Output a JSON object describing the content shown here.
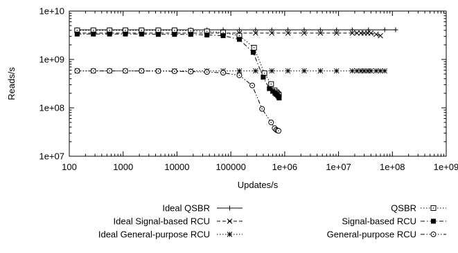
{
  "chart_data": {
    "type": "line",
    "title": "",
    "xlabel": "Updates/s",
    "ylabel": "Reads/s",
    "xscale": "log",
    "yscale": "log",
    "xlim": [
      100,
      1000000000
    ],
    "ylim": [
      10000000,
      10000000000
    ],
    "grid": false,
    "legend_position": "bottom (outside plot, two columns)",
    "x_tick_labels": [
      "100",
      "1000",
      "10000",
      "100000",
      "1e+06",
      "1e+07",
      "1e+08",
      "1e+09"
    ],
    "y_tick_labels": [
      "1e+07",
      "1e+08",
      "1e+09",
      "1e+10"
    ],
    "series": [
      {
        "name": "Ideal QSBR",
        "marker": "plus",
        "dash": "solid",
        "x": [
          140,
          280,
          560,
          1100,
          2200,
          4500,
          9000,
          18000,
          36000,
          72000,
          144000,
          288000,
          576000,
          1150000,
          2300000,
          4600000,
          9200000,
          18000000,
          36000000,
          72000000,
          115000000
        ],
        "y": [
          4100000000.0,
          4100000000.0,
          4100000000.0,
          4100000000.0,
          4100000000.0,
          4100000000.0,
          4100000000.0,
          4100000000.0,
          4100000000.0,
          4100000000.0,
          4100000000.0,
          4100000000.0,
          4100000000.0,
          4100000000.0,
          4100000000.0,
          4100000000.0,
          4100000000.0,
          4100000000.0,
          4100000000.0,
          4100000000.0,
          4100000000.0
        ]
      },
      {
        "name": "Ideal Signal-based RCU",
        "marker": "x",
        "dash": "dashed",
        "x": [
          140,
          280,
          560,
          1100,
          2200,
          4500,
          9000,
          18000,
          36000,
          72000,
          144000,
          288000,
          576000,
          1150000,
          2300000,
          4600000,
          9200000,
          18000000,
          22000000,
          26000000,
          30000000,
          35000000,
          40000000,
          50000000,
          60000000
        ],
        "y": [
          3500000000.0,
          3500000000.0,
          3500000000.0,
          3500000000.0,
          3500000000.0,
          3500000000.0,
          3500000000.0,
          3500000000.0,
          3500000000.0,
          3500000000.0,
          3500000000.0,
          3500000000.0,
          3500000000.0,
          3500000000.0,
          3500000000.0,
          3500000000.0,
          3500000000.0,
          3500000000.0,
          3500000000.0,
          3500000000.0,
          3500000000.0,
          3500000000.0,
          3500000000.0,
          3300000000.0,
          3100000000.0
        ]
      },
      {
        "name": "Ideal General-purpose RCU",
        "marker": "star",
        "dash": "dotted",
        "x": [
          140,
          280,
          560,
          1100,
          2200,
          4500,
          9000,
          18000,
          36000,
          72000,
          144000,
          288000,
          576000,
          1150000,
          2300000,
          4600000,
          9200000,
          18000000,
          22000000,
          26000000,
          30000000,
          35000000,
          40000000,
          50000000,
          60000000,
          72000000
        ],
        "y": [
          580000000.0,
          580000000.0,
          580000000.0,
          580000000.0,
          580000000.0,
          580000000.0,
          580000000.0,
          580000000.0,
          580000000.0,
          580000000.0,
          580000000.0,
          580000000.0,
          580000000.0,
          580000000.0,
          580000000.0,
          580000000.0,
          580000000.0,
          580000000.0,
          580000000.0,
          580000000.0,
          580000000.0,
          580000000.0,
          580000000.0,
          580000000.0,
          580000000.0,
          580000000.0
        ]
      },
      {
        "name": "QSBR",
        "marker": "square-open",
        "dash": "dotted",
        "x": [
          140,
          280,
          560,
          1100,
          2200,
          4500,
          9000,
          18000,
          36000,
          72000,
          144000,
          270000,
          420000,
          560000,
          650000,
          700000,
          730000,
          760000,
          780000
        ],
        "y": [
          4000000000.0,
          4000000000.0,
          4000000000.0,
          4000000000.0,
          4000000000.0,
          4000000000.0,
          4000000000.0,
          3900000000.0,
          3800000000.0,
          3600000000.0,
          3100000000.0,
          1750000000.0,
          520000000.0,
          310000000.0,
          230000000.0,
          210000000.0,
          200000000.0,
          190000000.0,
          185000000.0
        ]
      },
      {
        "name": "Signal-based RCU",
        "marker": "square-filled",
        "dash": "dashdot",
        "x": [
          140,
          280,
          560,
          1100,
          2200,
          4500,
          9000,
          18000,
          36000,
          72000,
          144000,
          260000,
          400000,
          520000,
          600000,
          660000,
          700000,
          740000,
          770000,
          790000
        ],
        "y": [
          3350000000.0,
          3350000000.0,
          3350000000.0,
          3350000000.0,
          3350000000.0,
          3300000000.0,
          3300000000.0,
          3300000000.0,
          3200000000.0,
          3100000000.0,
          2600000000.0,
          1400000000.0,
          430000000.0,
          250000000.0,
          220000000.0,
          200000000.0,
          190000000.0,
          180000000.0,
          170000000.0,
          160000000.0
        ]
      },
      {
        "name": "General-purpose RCU",
        "marker": "circle-dot",
        "dash": "dashdotdot",
        "x": [
          140,
          280,
          560,
          1100,
          2200,
          4500,
          9000,
          18000,
          36000,
          72000,
          144000,
          250000,
          380000,
          560000,
          650000,
          700000,
          740000,
          770000
        ],
        "y": [
          580000000.0,
          580000000.0,
          580000000.0,
          580000000.0,
          580000000.0,
          575000000.0,
          570000000.0,
          560000000.0,
          550000000.0,
          530000000.0,
          470000000.0,
          290000000.0,
          95000000.0,
          50000000.0,
          38000000.0,
          35000000.0,
          34000000.0,
          33500000.0
        ]
      }
    ]
  }
}
